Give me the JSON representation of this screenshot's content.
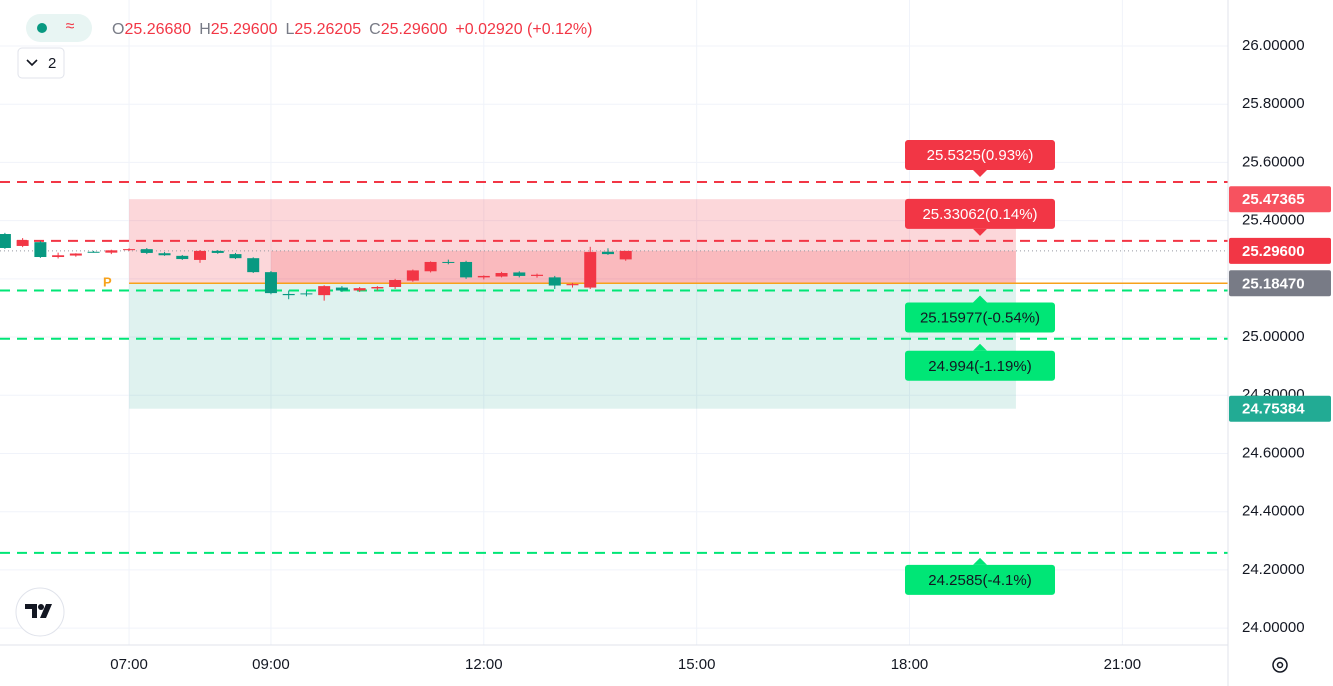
{
  "header": {
    "ohlc": [
      {
        "label": "O",
        "value": "25.26680"
      },
      {
        "label": "H",
        "value": "25.29600"
      },
      {
        "label": "L",
        "value": "25.26205"
      },
      {
        "label": "C",
        "value": "25.29600"
      }
    ],
    "change": "+0.02920 (+0.12%)",
    "indicator_count": "2"
  },
  "chart_data": {
    "type": "candlestick",
    "x": [
      5.25,
      5.5,
      5.75,
      6,
      6.25,
      6.5,
      6.75,
      7,
      7.25,
      7.5,
      7.75,
      8,
      8.25,
      8.5,
      8.75,
      9,
      9.25,
      9.5,
      9.75,
      10,
      10.25,
      10.5,
      10.75,
      11,
      11.25,
      11.5,
      11.75,
      12,
      12.25,
      12.5,
      12.75,
      13,
      13.25,
      13.5,
      13.75,
      14
    ],
    "open": [
      25.354,
      25.313,
      25.326,
      25.275,
      25.28,
      25.293,
      25.29,
      25.3,
      25.302,
      25.288,
      25.279,
      25.265,
      25.296,
      25.285,
      25.271,
      25.223,
      25.148,
      25.15,
      25.144,
      25.17,
      25.16,
      25.167,
      25.172,
      25.194,
      25.226,
      25.258,
      25.258,
      25.205,
      25.208,
      25.222,
      25.21,
      25.205,
      25.178,
      25.17,
      25.293,
      25.2668
    ],
    "high": [
      25.358,
      25.34,
      25.33,
      25.29,
      25.288,
      25.296,
      25.3,
      25.305,
      25.306,
      25.292,
      25.282,
      25.299,
      25.299,
      25.289,
      25.274,
      25.227,
      25.16,
      25.158,
      25.178,
      25.175,
      25.172,
      25.175,
      25.2,
      25.232,
      25.26,
      25.266,
      25.262,
      25.212,
      25.224,
      25.226,
      25.218,
      25.21,
      25.186,
      25.31,
      25.305,
      25.296
    ],
    "low": [
      25.303,
      25.309,
      25.272,
      25.27,
      25.276,
      25.29,
      25.285,
      25.296,
      25.285,
      25.279,
      25.265,
      25.255,
      25.286,
      25.268,
      25.22,
      25.147,
      25.13,
      25.14,
      25.125,
      25.155,
      25.155,
      25.16,
      25.165,
      25.19,
      25.222,
      25.25,
      25.2,
      25.198,
      25.205,
      25.205,
      25.204,
      25.165,
      25.17,
      25.165,
      25.282,
      25.26205
    ],
    "close": [
      25.306,
      25.333,
      25.275,
      25.281,
      25.287,
      25.292,
      25.298,
      25.302,
      25.289,
      25.281,
      25.268,
      25.296,
      25.289,
      25.271,
      25.223,
      25.151,
      25.144,
      25.147,
      25.175,
      25.16,
      25.168,
      25.172,
      25.196,
      25.229,
      25.258,
      25.256,
      25.205,
      25.21,
      25.22,
      25.21,
      25.214,
      25.177,
      25.182,
      25.292,
      25.285,
      25.296
    ],
    "up_color": "#f23645",
    "down_color": "#089981",
    "xlim": [
      5.181,
      22.489
    ],
    "ylim": [
      23.942,
      26.158
    ],
    "xticks": [
      {
        "value": 7,
        "label": "07:00"
      },
      {
        "value": 9,
        "label": "09:00"
      },
      {
        "value": 12,
        "label": "12:00"
      },
      {
        "value": 15,
        "label": "15:00"
      },
      {
        "value": 18,
        "label": "18:00"
      },
      {
        "value": 21,
        "label": "21:00"
      }
    ],
    "yticks": [
      {
        "value": 24,
        "label": "24.00000"
      },
      {
        "value": 24.2,
        "label": "24.20000"
      },
      {
        "value": 24.4,
        "label": "24.40000"
      },
      {
        "value": 24.6,
        "label": "24.60000"
      },
      {
        "value": 24.8,
        "label": "24.80000"
      },
      {
        "value": 25,
        "label": "25.00000"
      },
      {
        "value": 25.2,
        "label": "25.20000"
      },
      {
        "value": 25.4,
        "label": "25.40000"
      },
      {
        "value": 25.6,
        "label": "25.60000"
      },
      {
        "value": 25.8,
        "label": "25.80000"
      },
      {
        "value": 26,
        "label": "26.00000"
      }
    ],
    "grid": true,
    "levels": [
      {
        "value": 25.5325,
        "label": "25.5325(0.93%)",
        "color": "#f23645"
      },
      {
        "value": 25.33062,
        "label": "25.33062(0.14%)",
        "color": "#f23645"
      },
      {
        "value": 25.15977,
        "label": "25.15977(-0.54%)",
        "color": "#00e676"
      },
      {
        "value": 24.994,
        "label": "24.994(-1.19%)",
        "color": "#00e676"
      },
      {
        "value": 24.2585,
        "label": "24.2585(-4.1%)",
        "color": "#00e676"
      }
    ],
    "position": {
      "x_start": 7,
      "x_end": 19.5,
      "active_from": 9,
      "entry": 25.1847,
      "target": 25.47365,
      "stop": 24.75384
    },
    "price_tags": [
      {
        "value": 25.47365,
        "label": "25.47365",
        "color": "#f7525f"
      },
      {
        "value": 25.296,
        "label": "25.29600",
        "color": "#f23645"
      },
      {
        "value": 25.1847,
        "label": "25.18470",
        "color": "#787b86"
      },
      {
        "value": 24.75384,
        "label": "24.75384",
        "color": "#22ab94"
      }
    ],
    "marker": {
      "label": "P",
      "x": 6.75,
      "value": 25.1847
    }
  }
}
